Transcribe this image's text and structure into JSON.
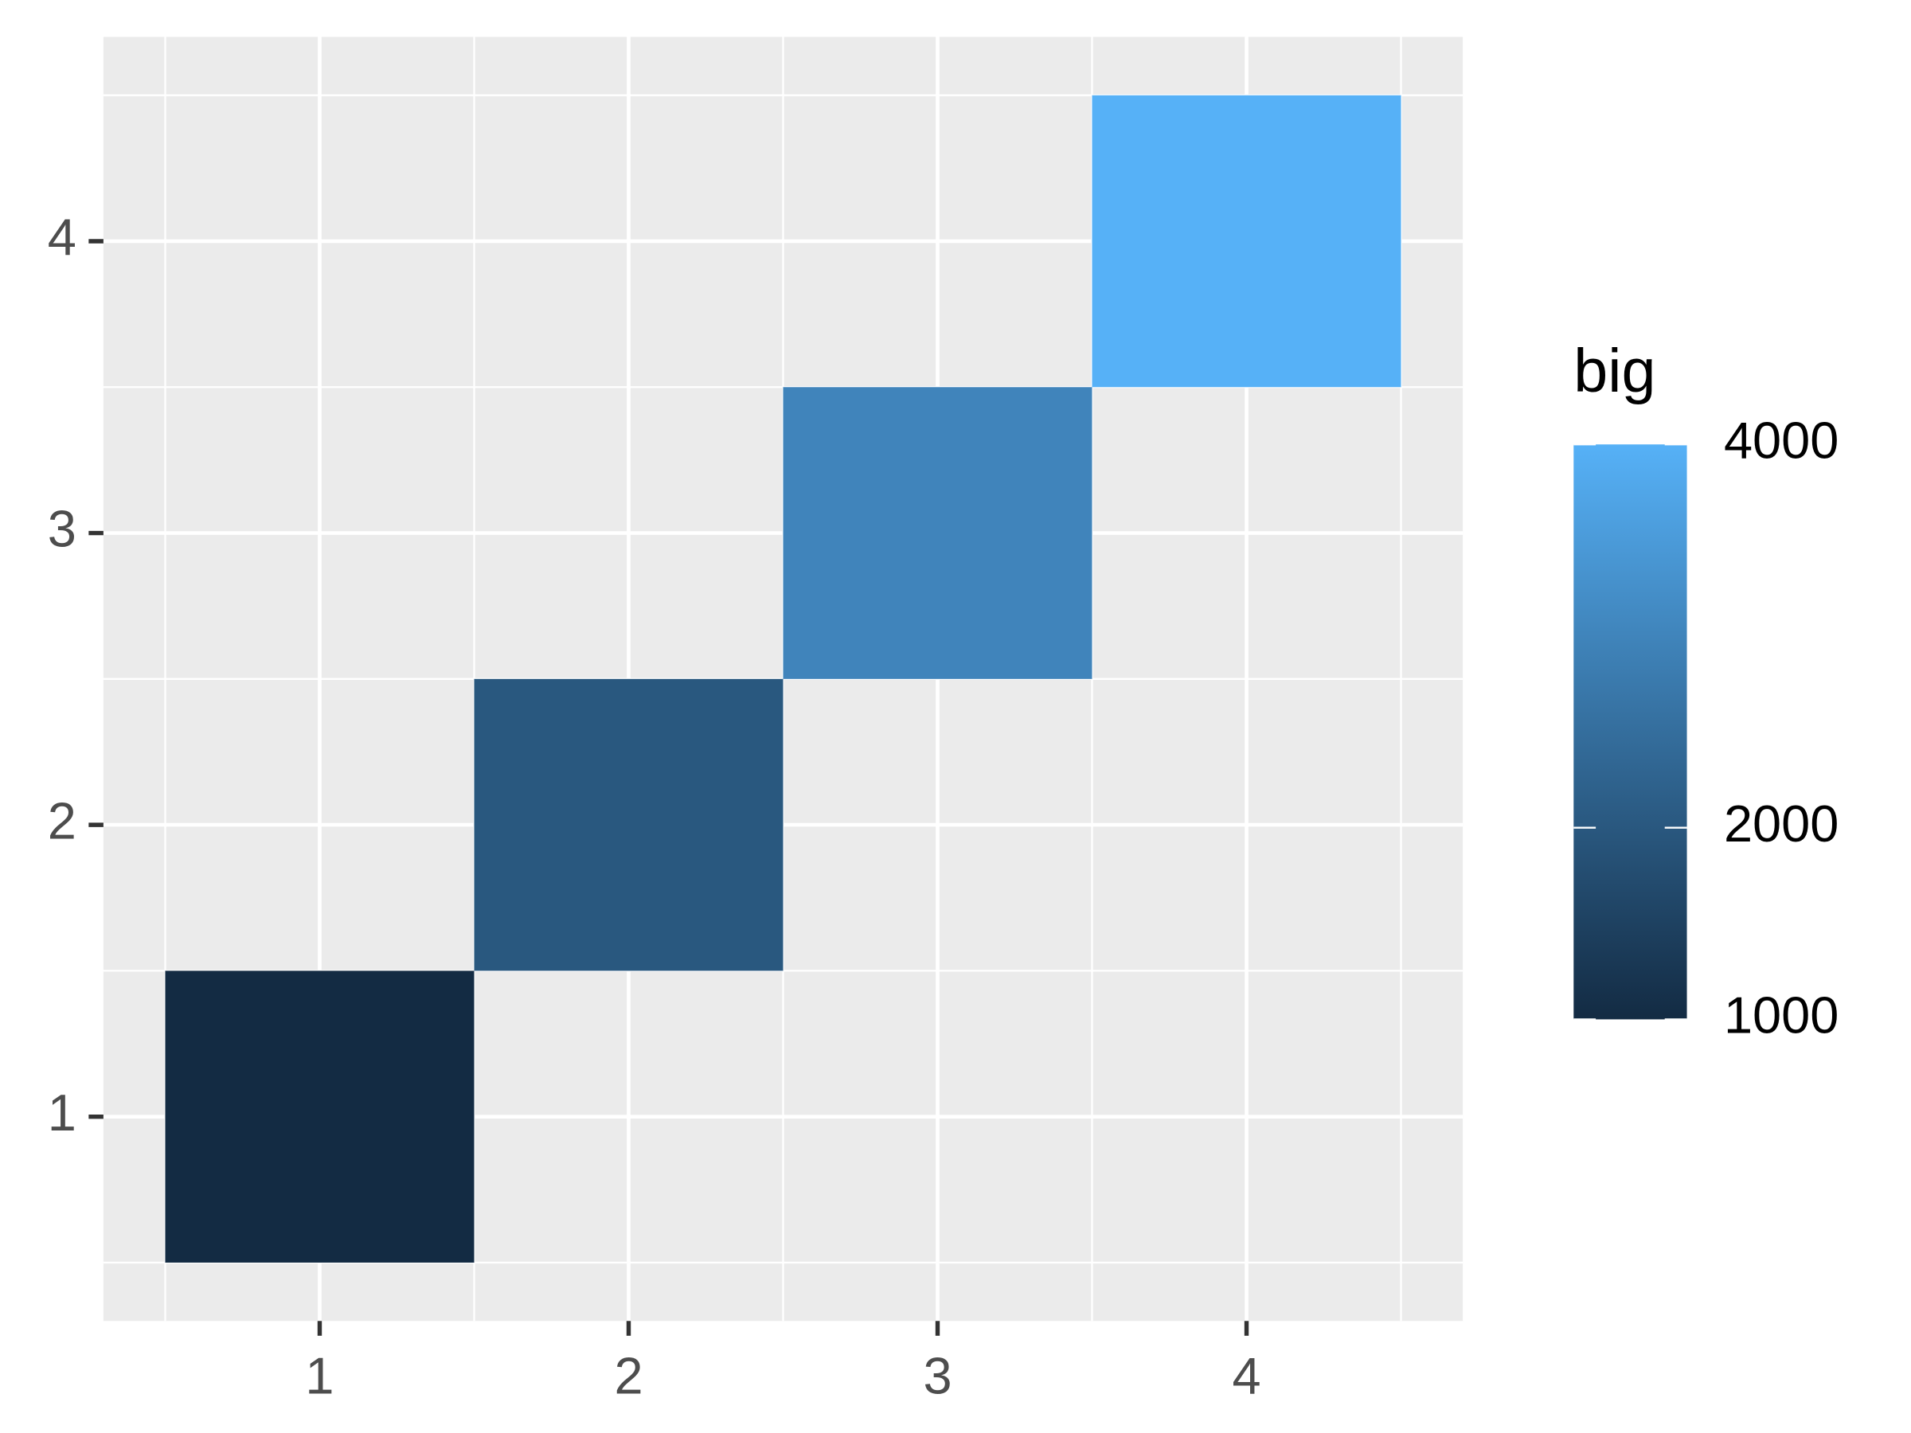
{
  "chart_data": {
    "type": "heatmap",
    "x": [
      1,
      2,
      3,
      4
    ],
    "y": [
      1,
      2,
      3,
      4
    ],
    "values": [
      1000,
      2000,
      3000,
      4000
    ],
    "xlim": [
      0.3,
      4.7
    ],
    "ylim": [
      0.3,
      4.7
    ],
    "xticks": [
      1,
      2,
      3,
      4
    ],
    "yticks": [
      1,
      2,
      3,
      4
    ],
    "grid": true,
    "legend_title": "big",
    "legend_position": "right",
    "legend_ticks": [
      1000,
      2000,
      4000
    ],
    "low_color": "#132B43",
    "high_color": "#56B1F7",
    "panel_color": "#EBEBEB"
  }
}
